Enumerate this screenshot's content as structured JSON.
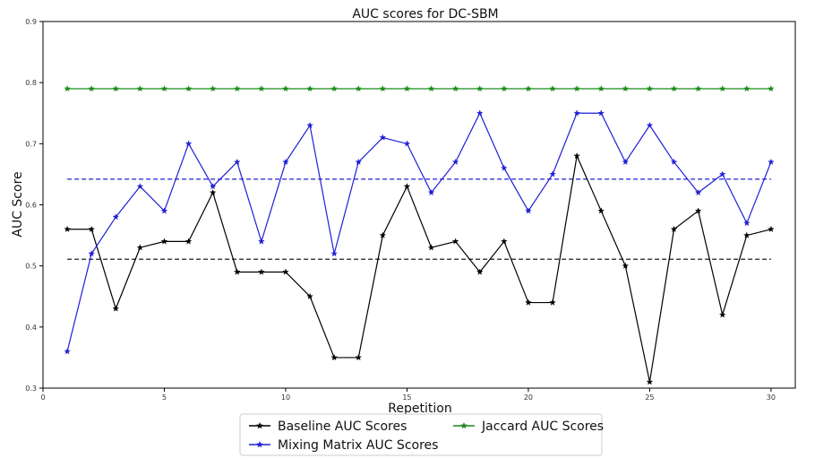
{
  "chart_data": {
    "type": "line",
    "title": "AUC scores for DC-SBM",
    "xlabel": "Repetition",
    "ylabel": "AUC Score",
    "xlim": [
      0,
      31
    ],
    "ylim": [
      0.3,
      0.9
    ],
    "xticks": [
      0,
      5,
      10,
      15,
      20,
      25,
      30
    ],
    "yticks": [
      0.3,
      0.4,
      0.5,
      0.6,
      0.7,
      0.8,
      0.9
    ],
    "grid": false,
    "legend_position": "bottom-center",
    "x": [
      1,
      2,
      3,
      4,
      5,
      6,
      7,
      8,
      9,
      10,
      11,
      12,
      13,
      14,
      15,
      16,
      17,
      18,
      19,
      20,
      21,
      22,
      23,
      24,
      25,
      26,
      27,
      28,
      29,
      30
    ],
    "series": [
      {
        "name": "Baseline AUC Scores",
        "color": "#000000",
        "marker": "star",
        "values": [
          0.56,
          0.56,
          0.43,
          0.53,
          0.54,
          0.54,
          0.62,
          0.49,
          0.49,
          0.49,
          0.45,
          0.35,
          0.35,
          0.55,
          0.63,
          0.53,
          0.54,
          0.49,
          0.54,
          0.44,
          0.44,
          0.68,
          0.59,
          0.5,
          0.31,
          0.56,
          0.59,
          0.42,
          0.55,
          0.56
        ],
        "mean": 0.511
      },
      {
        "name": "Mixing Matrix AUC Scores",
        "color": "#1f1fd6",
        "marker": "star",
        "values": [
          0.36,
          0.52,
          0.58,
          0.63,
          0.59,
          0.7,
          0.63,
          0.67,
          0.54,
          0.67,
          0.73,
          0.52,
          0.67,
          0.71,
          0.7,
          0.62,
          0.67,
          0.75,
          0.66,
          0.59,
          0.65,
          0.75,
          0.75,
          0.67,
          0.73,
          0.67,
          0.62,
          0.65,
          0.57,
          0.67
        ],
        "mean": 0.642
      },
      {
        "name": "Jaccard AUC Scores",
        "color": "#1a8a1a",
        "marker": "star",
        "values": [
          0.79,
          0.79,
          0.79,
          0.79,
          0.79,
          0.79,
          0.79,
          0.79,
          0.79,
          0.79,
          0.79,
          0.79,
          0.79,
          0.79,
          0.79,
          0.79,
          0.79,
          0.79,
          0.79,
          0.79,
          0.79,
          0.79,
          0.79,
          0.79,
          0.79,
          0.79,
          0.79,
          0.79,
          0.79,
          0.79
        ],
        "mean": 0.79
      }
    ]
  }
}
